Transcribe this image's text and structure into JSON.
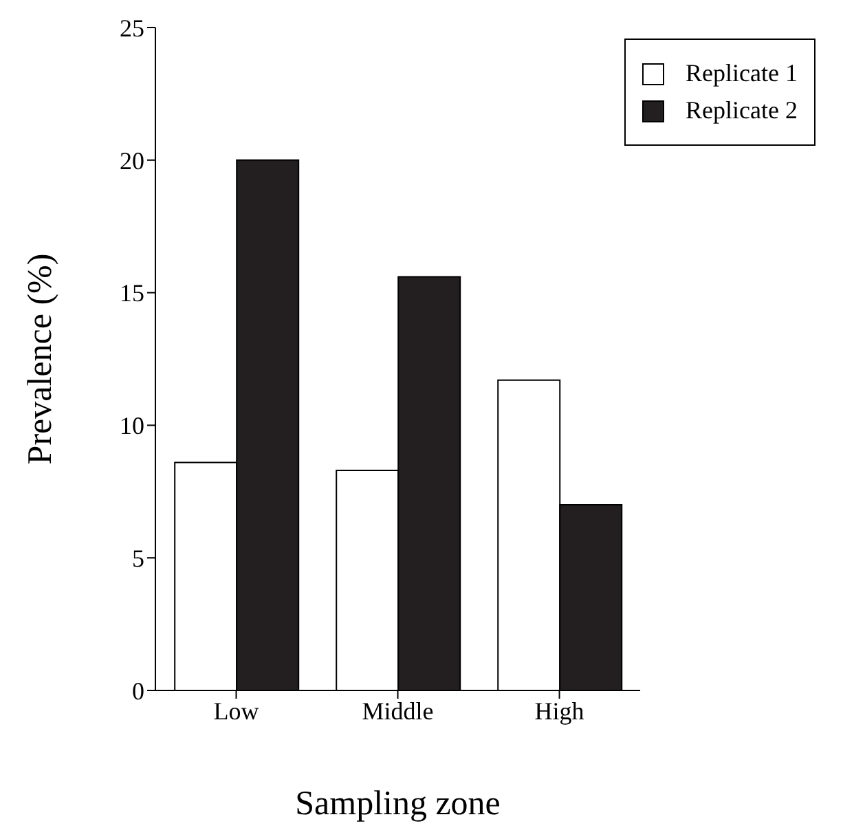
{
  "chart_data": {
    "type": "bar",
    "xlabel": "Sampling zone",
    "ylabel": "Prevalence (%)",
    "categories": [
      "Low",
      "Middle",
      "High"
    ],
    "series": [
      {
        "name": "Replicate 1",
        "color": "#ffffff",
        "values": [
          8.6,
          8.3,
          11.7
        ]
      },
      {
        "name": "Replicate 2",
        "color": "#231f20",
        "values": [
          20.0,
          15.6,
          7.0
        ]
      }
    ],
    "ylim": [
      0,
      25
    ],
    "yticks": [
      0,
      5,
      10,
      15,
      20,
      25
    ],
    "grid": false,
    "legend": "top right"
  }
}
